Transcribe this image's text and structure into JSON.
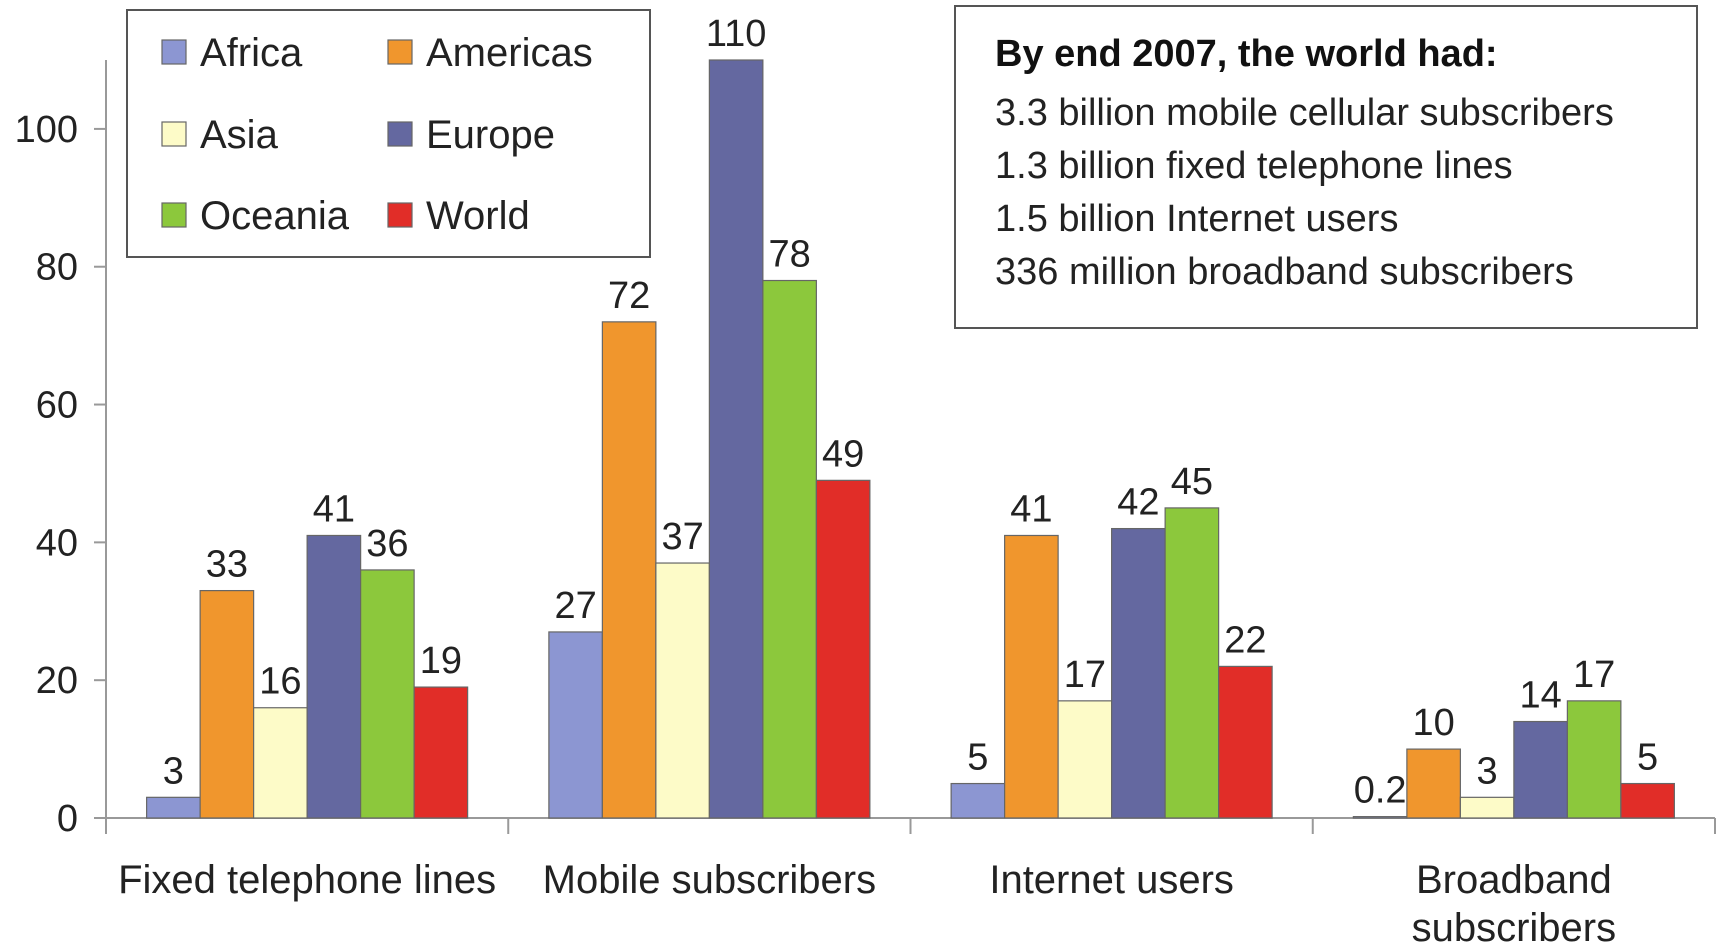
{
  "chart_data": {
    "type": "bar",
    "title": "",
    "xlabel": "",
    "ylabel": "",
    "ylim": [
      0,
      110
    ],
    "yticks": [
      0,
      20,
      40,
      60,
      80,
      100
    ],
    "grid": false,
    "legend_position": "top-left",
    "categories": [
      [
        "Fixed telephone lines"
      ],
      [
        "Mobile subscribers"
      ],
      [
        "Internet users"
      ],
      [
        "Broadband",
        "subscribers"
      ]
    ],
    "series": [
      {
        "name": "Africa",
        "color": "#8c96d2",
        "values": [
          3,
          27,
          5,
          0.2
        ],
        "labels": [
          "3",
          "27",
          "5",
          "0.2"
        ]
      },
      {
        "name": "Americas",
        "color": "#f0962d",
        "values": [
          33,
          72,
          41,
          10
        ],
        "labels": [
          "33",
          "72",
          "41",
          "10"
        ]
      },
      {
        "name": "Asia",
        "color": "#fdfbc8",
        "values": [
          16,
          37,
          17,
          3
        ],
        "labels": [
          "16",
          "37",
          "17",
          "3"
        ]
      },
      {
        "name": "Europe",
        "color": "#6468a0",
        "values": [
          41,
          110,
          42,
          14
        ],
        "labels": [
          "41",
          "110",
          "42",
          "14"
        ]
      },
      {
        "name": "Oceania",
        "color": "#8cc83c",
        "values": [
          36,
          78,
          45,
          17
        ],
        "labels": [
          "36",
          "78",
          "45",
          "17"
        ]
      },
      {
        "name": "World",
        "color": "#e12d28",
        "values": [
          19,
          49,
          22,
          5
        ],
        "labels": [
          "19",
          "49",
          "22",
          "5"
        ]
      }
    ]
  },
  "info_box": {
    "title": "By end 2007, the world had:",
    "lines": [
      "3.3 billion mobile cellular subscribers",
      "1.3 billion fixed telephone lines",
      "1.5 billion Internet users",
      "336 million broadband subscribers"
    ]
  }
}
